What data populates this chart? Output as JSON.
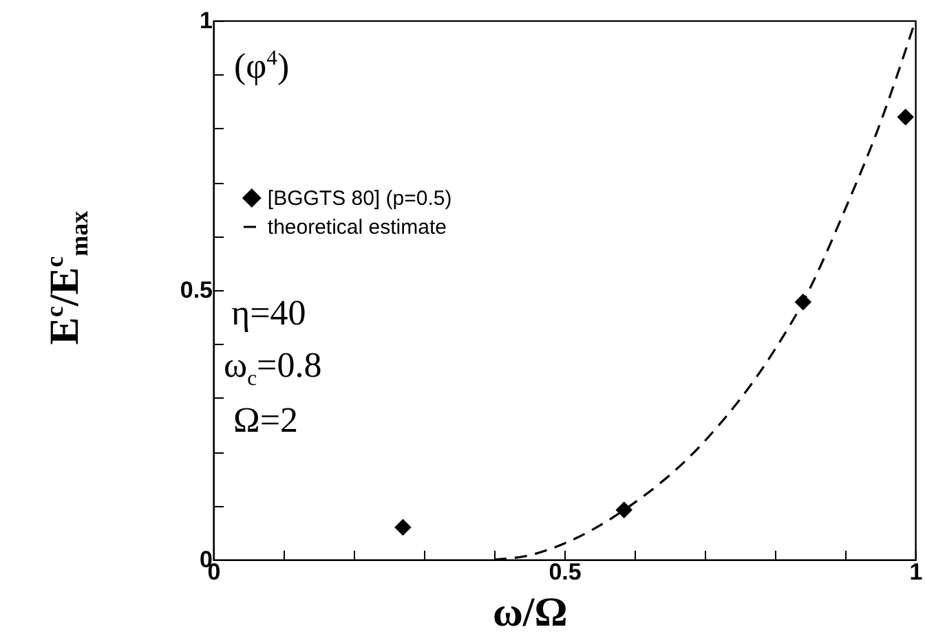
{
  "chart_data": {
    "type": "scatter",
    "xlabel": "ω/Ω",
    "ylabel": "E$^{c}$/E$^{c}$$_{max}$",
    "annotations": [
      "(φ$^{4}$)",
      "η=40",
      "ω$_{c}$=0.8",
      "Ω=2"
    ],
    "xlim": [
      0,
      1
    ],
    "ylim": [
      0,
      1
    ],
    "xticks": [
      0,
      {
        "value": 0.1,
        "label": null
      },
      {
        "value": 0.2,
        "label": null
      },
      {
        "value": 0.3,
        "label": null
      },
      {
        "value": 0.4,
        "label": null
      },
      0.5,
      {
        "value": 0.6,
        "label": null
      },
      {
        "value": 0.7,
        "label": null
      },
      {
        "value": 0.8,
        "label": null
      },
      {
        "value": 0.9,
        "label": null
      },
      1
    ],
    "yticks": [
      0,
      {
        "value": 0.1,
        "label": null
      },
      {
        "value": 0.2,
        "label": null
      },
      {
        "value": 0.3,
        "label": null
      },
      {
        "value": 0.4,
        "label": null
      },
      0.5,
      {
        "value": 0.6,
        "label": null
      },
      {
        "value": 0.7,
        "label": null
      },
      {
        "value": 0.8,
        "label": null
      },
      {
        "value": 0.9,
        "label": null
      },
      1
    ],
    "legend": "top left",
    "series": [
      {
        "name": "[BGGTS 80]   (p=0.5)",
        "marker": "diamond",
        "color": "#000000",
        "x": [
          0.27,
          0.585,
          0.84,
          0.986
        ],
        "values": [
          0.06,
          0.092,
          0.478,
          0.821
        ]
      },
      {
        "name": "theoretical estimate",
        "type": "line",
        "line_style": "dashed",
        "marker": "none",
        "color": "#000000",
        "x": [
          0.4,
          0.45,
          0.5,
          0.585,
          0.7,
          0.8,
          0.84,
          0.9,
          0.95,
          1.0
        ],
        "values": [
          0,
          0.008,
          0.03,
          0.092,
          0.22,
          0.39,
          0.478,
          0.65,
          0.81,
          1.0
        ]
      }
    ]
  }
}
